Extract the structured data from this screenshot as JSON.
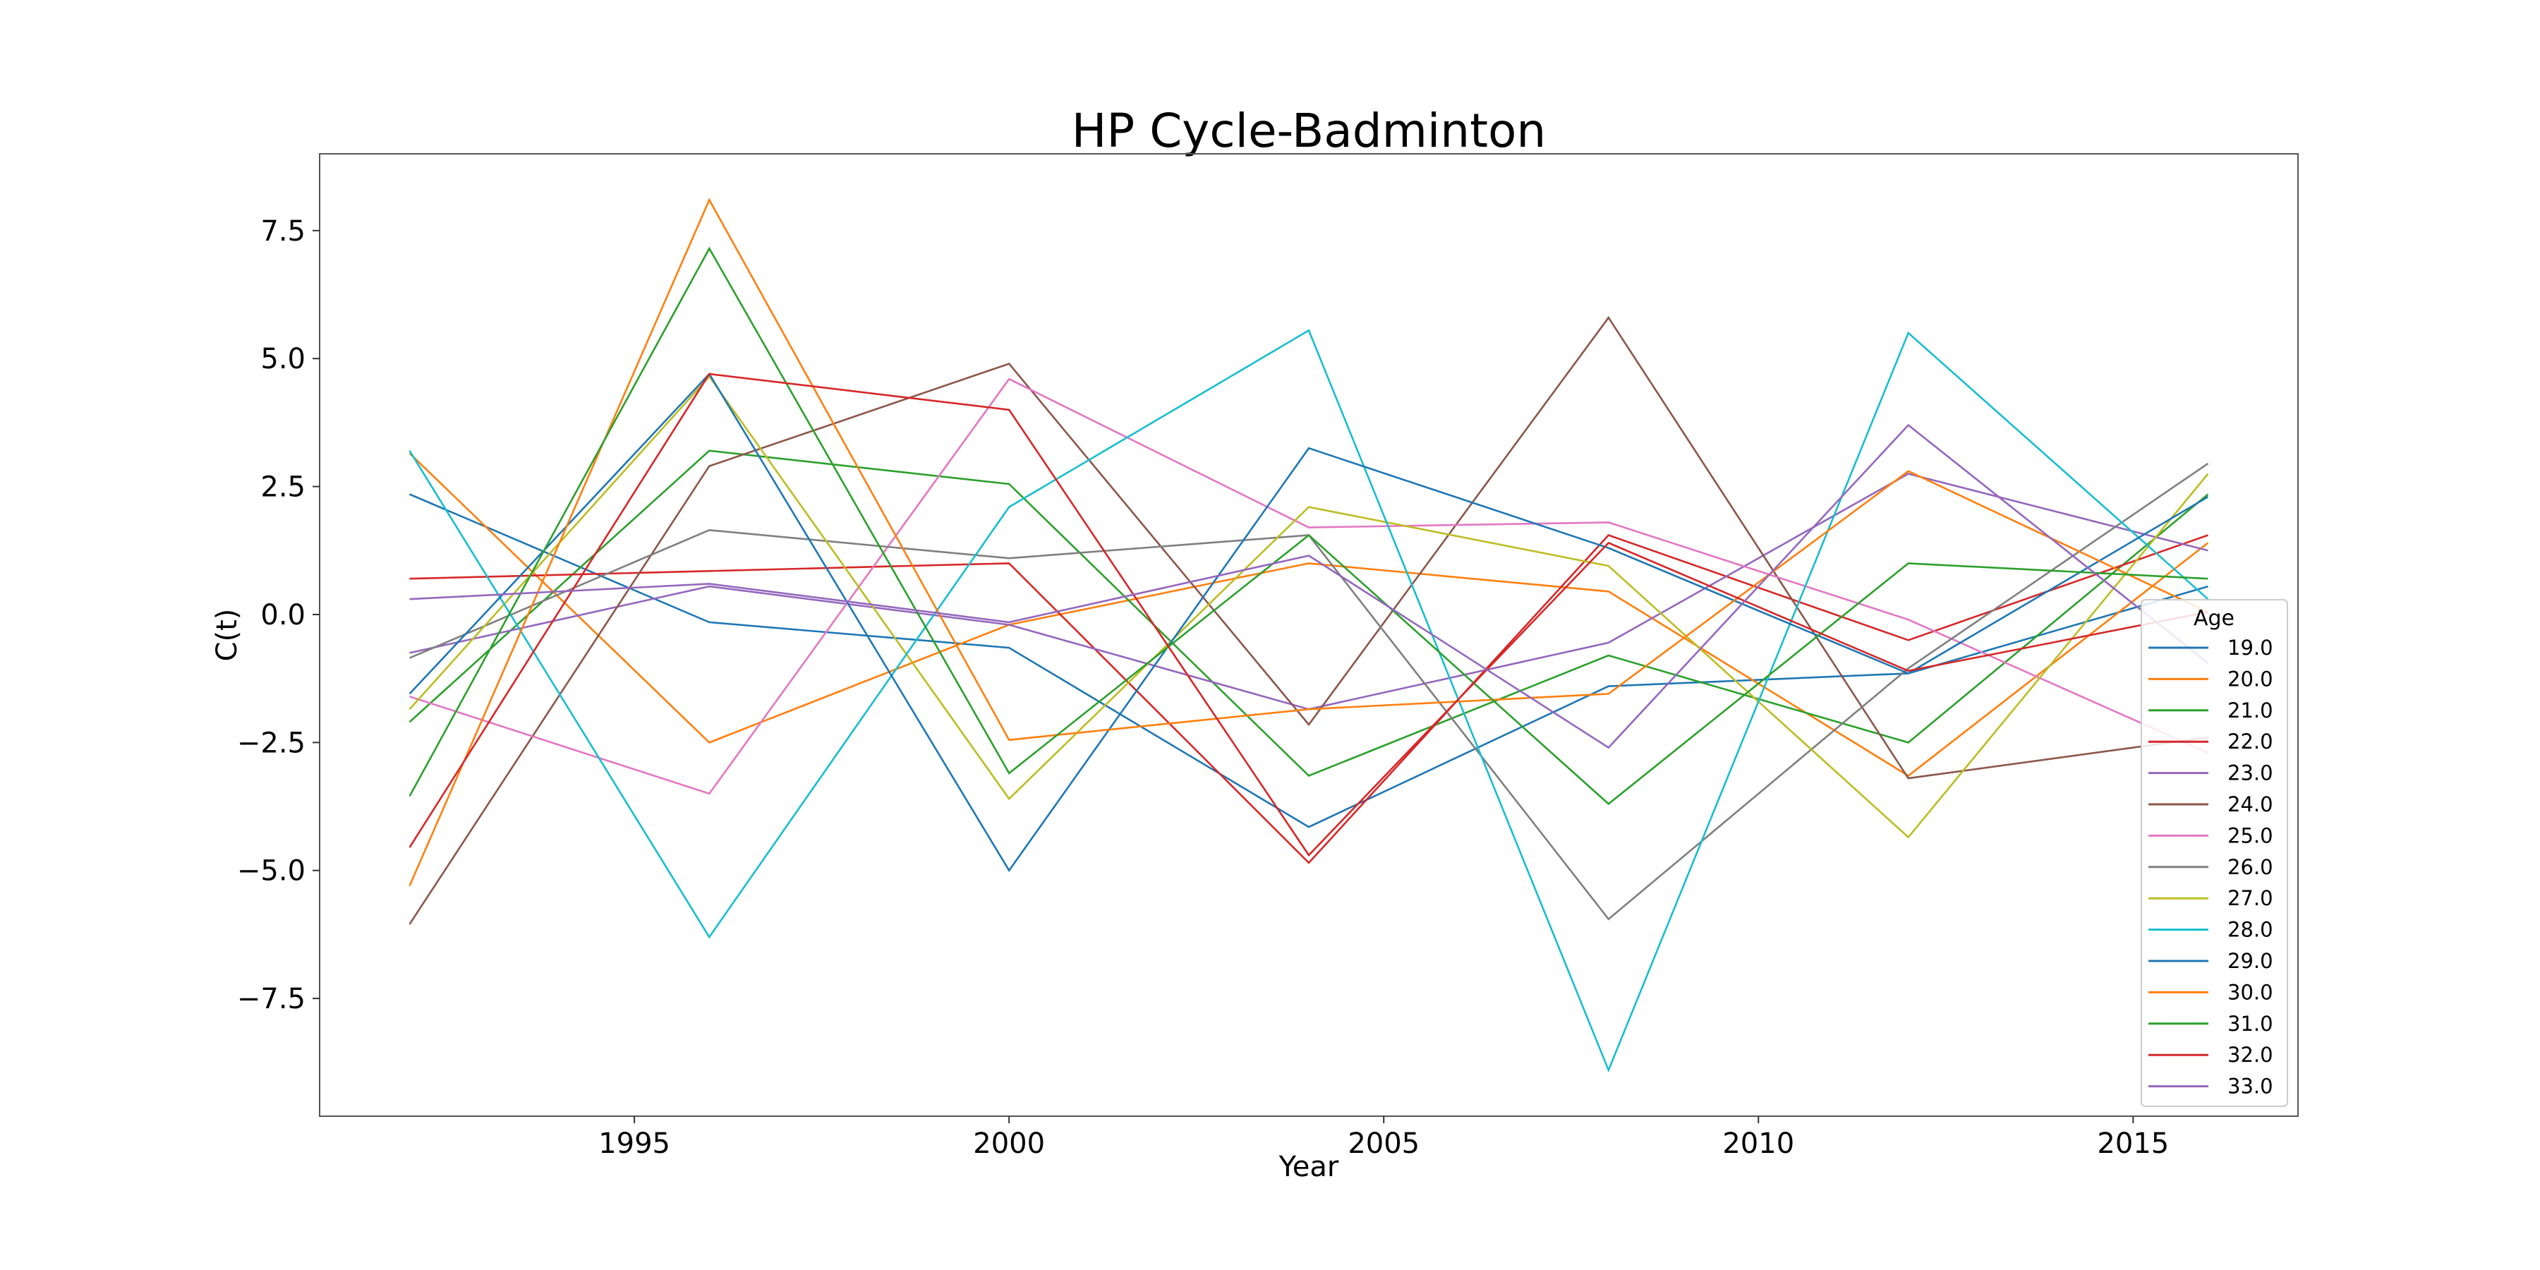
{
  "chart_data": {
    "type": "line",
    "title": "HP Cycle-Badminton",
    "xlabel": "Year",
    "ylabel": "C(t)",
    "xlim": [
      1990.8,
      2017.2
    ],
    "ylim": [
      -9.8,
      9.0
    ],
    "x": [
      1992,
      1996,
      2000,
      2004,
      2008,
      2012,
      2016
    ],
    "xticks": [
      1995,
      2000,
      2005,
      2010,
      2015
    ],
    "xtick_labels": [
      "1995",
      "2000",
      "2005",
      "2010",
      "2015"
    ],
    "yticks": [
      7.5,
      5.0,
      2.5,
      0.0,
      -2.5,
      -5.0,
      -7.5
    ],
    "ytick_labels": [
      "7.5",
      "5.0",
      "2.5",
      "0.0",
      "−2.5",
      "−5.0",
      "−7.5"
    ],
    "grid": false,
    "legend": {
      "title": "Age",
      "placement": "lower-right"
    },
    "series": [
      {
        "name": "19.0",
        "color": "#1f77b4",
        "values": [
          2.35,
          -0.15,
          -0.65,
          -4.15,
          -1.4,
          -1.15,
          0.55
        ]
      },
      {
        "name": "20.0",
        "color": "#ff7f0e",
        "values": [
          3.15,
          -2.5,
          -0.2,
          1.0,
          0.45,
          -3.15,
          1.4
        ]
      },
      {
        "name": "21.0",
        "color": "#2ca02c",
        "values": [
          -2.1,
          3.2,
          2.55,
          -3.15,
          -0.8,
          -2.5,
          2.35
        ]
      },
      {
        "name": "22.0",
        "color": "#d62728",
        "values": [
          0.7,
          0.85,
          1.0,
          -4.85,
          1.55,
          -0.5,
          1.55
        ]
      },
      {
        "name": "23.0",
        "color": "#9467bd",
        "values": [
          -0.75,
          0.55,
          -0.2,
          -1.85,
          -0.55,
          2.75,
          1.25
        ]
      },
      {
        "name": "24.0",
        "color": "#8c564b",
        "values": [
          -6.05,
          2.9,
          4.9,
          -2.15,
          5.8,
          -3.2,
          -2.4
        ]
      },
      {
        "name": "25.0",
        "color": "#e377c2",
        "values": [
          -1.6,
          -3.5,
          4.6,
          1.7,
          1.8,
          -0.1,
          -2.7
        ]
      },
      {
        "name": "26.0",
        "color": "#7f7f7f",
        "values": [
          -0.85,
          1.65,
          1.1,
          1.55,
          -5.95,
          -1.05,
          2.95
        ]
      },
      {
        "name": "27.0",
        "color": "#bcbd22",
        "values": [
          -1.85,
          4.65,
          -3.6,
          2.1,
          0.95,
          -4.35,
          2.75
        ]
      },
      {
        "name": "28.0",
        "color": "#17becf",
        "values": [
          3.2,
          -6.3,
          2.1,
          5.55,
          -8.9,
          5.5,
          0.3
        ]
      },
      {
        "name": "29.0",
        "color": "#1f77b4",
        "values": [
          -1.55,
          4.7,
          -5.0,
          3.25,
          1.3,
          -1.15,
          2.3
        ]
      },
      {
        "name": "30.0",
        "color": "#ff7f0e",
        "values": [
          -5.3,
          8.1,
          -2.45,
          -1.85,
          -1.55,
          2.8,
          0.05
        ]
      },
      {
        "name": "31.0",
        "color": "#2ca02c",
        "values": [
          -3.55,
          7.15,
          -3.1,
          1.55,
          -3.7,
          1.0,
          0.7
        ]
      },
      {
        "name": "32.0",
        "color": "#d62728",
        "values": [
          -4.55,
          4.7,
          4.0,
          -4.7,
          1.4,
          -1.1,
          0.05
        ]
      },
      {
        "name": "33.0",
        "color": "#9467bd",
        "values": [
          0.3,
          0.6,
          -0.15,
          1.15,
          -2.6,
          3.7,
          -0.95
        ]
      }
    ]
  }
}
